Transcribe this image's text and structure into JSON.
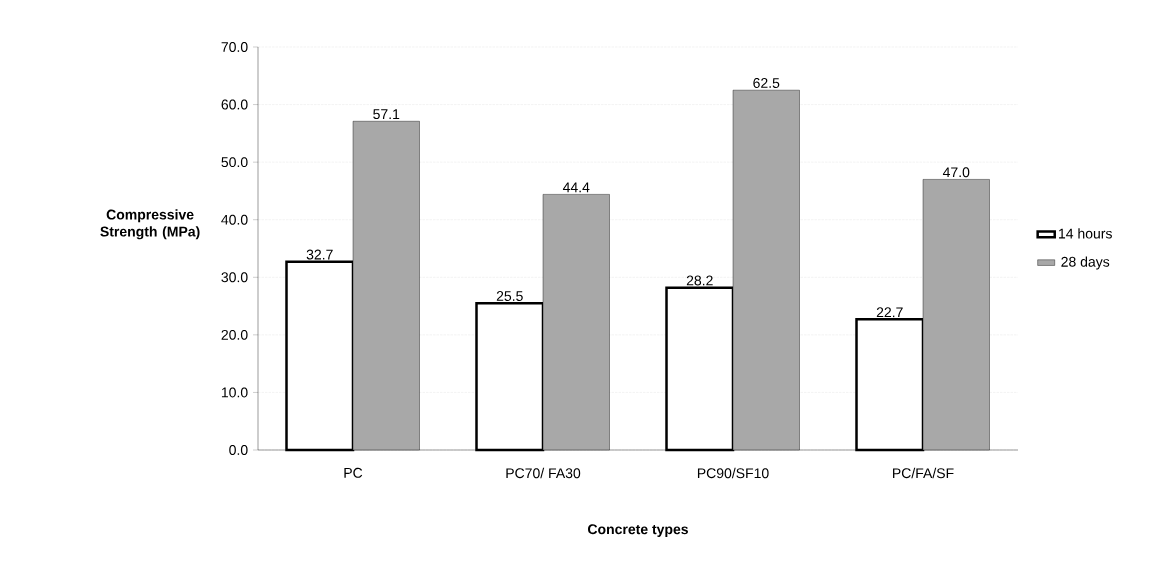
{
  "chart_data": {
    "type": "bar",
    "xlabel": "Concrete types",
    "ylabel": "Compressive Strength (MPa)",
    "categories": [
      "PC",
      "PC70/ FA30",
      "PC90/SF10",
      "PC/FA/SF"
    ],
    "series": [
      {
        "name": "14 hours",
        "color": "#ffffff",
        "values": [
          32.7,
          25.5,
          28.2,
          22.7
        ],
        "value_labels": [
          "32.7",
          "25.5",
          "28.2",
          "22.7"
        ]
      },
      {
        "name": "28 days",
        "color": "#a8a8a8",
        "values": [
          57.1,
          44.4,
          62.5,
          47.0
        ],
        "value_labels": [
          "57.1",
          "44.4",
          "62.5",
          "47.0"
        ]
      }
    ],
    "ylim": [
      0,
      70
    ],
    "yticks": [
      {
        "value": 0,
        "label": "0.0"
      },
      {
        "value": 10,
        "label": "10.0"
      },
      {
        "value": 20,
        "label": "20.0"
      },
      {
        "value": 30,
        "label": "30.0"
      },
      {
        "value": 40,
        "label": "40.0"
      },
      {
        "value": 50,
        "label": "50.0"
      },
      {
        "value": 60,
        "label": "60.0"
      },
      {
        "value": 70,
        "label": "70.0"
      }
    ],
    "grid": "y",
    "legend": "right"
  }
}
